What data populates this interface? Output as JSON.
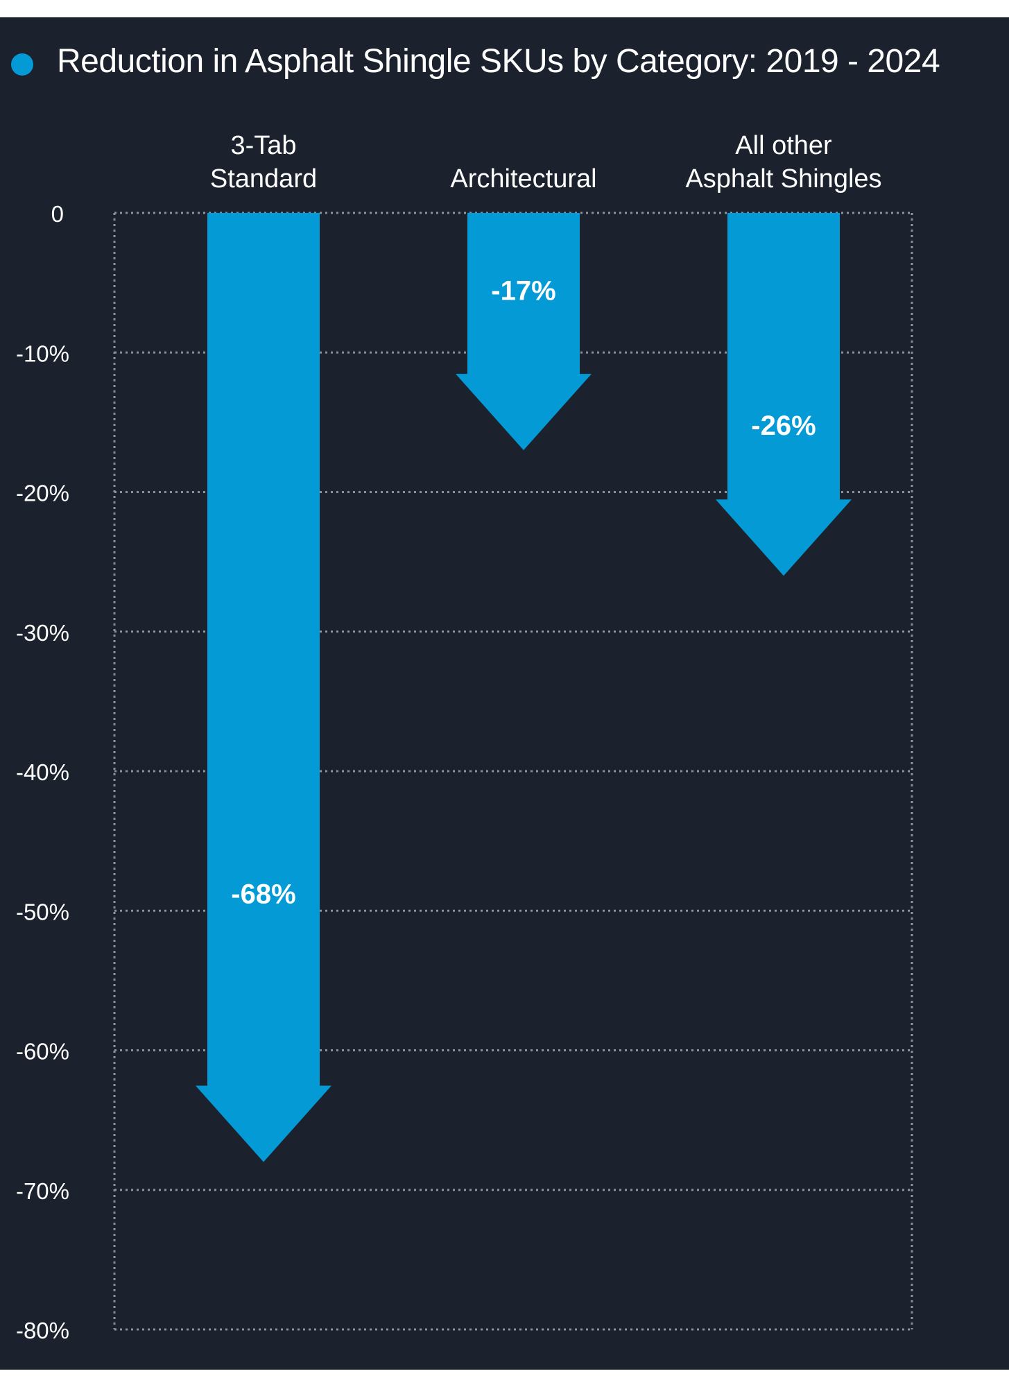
{
  "chart_data": {
    "type": "bar",
    "title": "Reduction in Asphalt Shingle SKUs by Category: 2019 - 2024",
    "categories": [
      [
        "3-Tab",
        "Standard"
      ],
      [
        "Architectural"
      ],
      [
        "All other",
        "Asphalt Shingles"
      ]
    ],
    "values": [
      -68,
      -17,
      -26
    ],
    "data_labels": [
      "-68%",
      "-17%",
      "-26%"
    ],
    "ylim": [
      -80,
      0
    ],
    "y_ticks": [
      0,
      -10,
      -20,
      -30,
      -40,
      -50,
      -60,
      -70,
      -80
    ],
    "y_tick_labels": [
      "0",
      "-10%",
      "-20%",
      "-30%",
      "-40%",
      "-50%",
      "-60%",
      "-70%",
      "-80%"
    ],
    "grid": true,
    "legend_placement": "top-left",
    "mark_shape": "down-arrow",
    "colors": {
      "bar": "#039ad6",
      "background": "#1b222e",
      "grid": "#8e939a",
      "text": "#ffffff",
      "legend_dot": "#039ad6"
    }
  }
}
